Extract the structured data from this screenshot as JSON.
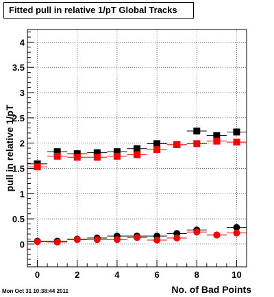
{
  "timestamp": "Mon Oct 31 10:38:44 2011",
  "chart_data": {
    "type": "scatter",
    "title": "Fitted pull in relative 1/pT  Global Tracks",
    "xlabel": "No. of Bad Points",
    "ylabel": "pull in relative 1/pT",
    "xlim": [
      -0.5,
      10.5
    ],
    "ylim": [
      -0.45,
      4.25
    ],
    "xticks": [
      "0",
      "2",
      "4",
      "6",
      "8",
      "10"
    ],
    "yticks": [
      "0",
      "0.5",
      "1",
      "1.5",
      "2",
      "2.5",
      "3",
      "3.5",
      "4"
    ],
    "grid": true,
    "legend": "none",
    "x": [
      0,
      1,
      2,
      3,
      4,
      5,
      6,
      7,
      8,
      9,
      10
    ],
    "series": [
      {
        "marker": "square",
        "color": "#000000",
        "values": [
          1.59,
          1.83,
          1.79,
          1.81,
          1.83,
          1.89,
          1.99,
          1.97,
          2.24,
          2.15,
          2.22
        ]
      },
      {
        "marker": "square",
        "color": "#ff0000",
        "values": [
          1.53,
          1.74,
          1.72,
          1.72,
          1.74,
          1.77,
          1.87,
          1.97,
          1.99,
          2.04,
          2.02
        ]
      },
      {
        "marker": "circle",
        "color": "#000000",
        "values": [
          0.06,
          0.06,
          0.1,
          0.12,
          0.16,
          0.16,
          0.16,
          0.21,
          0.28,
          0.18,
          0.33
        ]
      },
      {
        "marker": "circle",
        "color": "#ff0000",
        "values": [
          0.05,
          0.04,
          0.09,
          0.09,
          0.09,
          0.13,
          0.08,
          0.12,
          0.24,
          0.18,
          0.22
        ]
      }
    ]
  }
}
